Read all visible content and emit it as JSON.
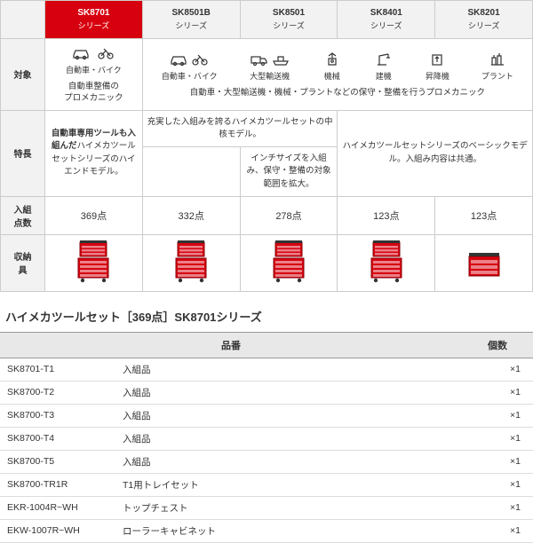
{
  "colors": {
    "accent": "#d7000f",
    "header_bg": "#f2f2f2",
    "border": "#ccc",
    "cabinet_red": "#d7000f",
    "cabinet_dark": "#8a0008"
  },
  "series": [
    {
      "name": "SK8701",
      "sub": "シリーズ",
      "active": true
    },
    {
      "name": "SK8501B",
      "sub": "シリーズ",
      "active": false
    },
    {
      "name": "SK8501",
      "sub": "シリーズ",
      "active": false
    },
    {
      "name": "SK8401",
      "sub": "シリーズ",
      "active": false
    },
    {
      "name": "SK8201",
      "sub": "シリーズ",
      "active": false
    }
  ],
  "row_labels": {
    "target": "対象",
    "feature": "特長",
    "count": "入組\n点数",
    "storage": "収納\n具"
  },
  "target": {
    "col1": {
      "icons": [
        "car",
        "bike"
      ],
      "label": "自動車・バイク",
      "desc": "自動車整備の\nプロメカニック"
    },
    "wide": {
      "groups": [
        {
          "icons": [
            "car",
            "bike"
          ],
          "label": "自動車・バイク"
        },
        {
          "icons": [
            "truck",
            "ship"
          ],
          "label": "大型輸送機"
        },
        {
          "icons": [
            "robot"
          ],
          "label": "機械"
        },
        {
          "icons": [
            "crane"
          ],
          "label": "建機"
        },
        {
          "icons": [
            "lift"
          ],
          "label": "昇降機"
        },
        {
          "icons": [
            "plant"
          ],
          "label": "プラント"
        }
      ],
      "desc": "自動車・大型輸送機・機械・プラントなどの保守・整備を行うプロメカニック"
    }
  },
  "feature": {
    "col1": "自動車専用ツールも入組んだハイメカツールセットシリーズのハイエンドモデル。",
    "col1_bold_prefix": "自動車専用ツールも入組んだ",
    "col2_top": "充実した入組みを誇るハイメカツールセットの中核モデル。",
    "col3_bottom": "インチサイズを入組み、保守・整備の対象範囲を拡大。",
    "col45": "ハイメカツールセットシリーズのベーシックモデル。入組み内容は共通。"
  },
  "count": [
    "369点",
    "332点",
    "278点",
    "123点",
    "123点"
  ],
  "storage_variant": [
    "tall",
    "tall",
    "tall",
    "tall",
    "short"
  ],
  "section_title": "ハイメカツールセット［369点］SK8701シリーズ",
  "parts_header": {
    "pn": "品番",
    "qty": "個数"
  },
  "parts": [
    {
      "pn": "SK8701-T1",
      "desc": "入組品",
      "qty": "×1"
    },
    {
      "pn": "SK8700-T2",
      "desc": "入組品",
      "qty": "×1"
    },
    {
      "pn": "SK8700-T3",
      "desc": "入組品",
      "qty": "×1"
    },
    {
      "pn": "SK8700-T4",
      "desc": "入組品",
      "qty": "×1"
    },
    {
      "pn": "SK8700-T5",
      "desc": "入組品",
      "qty": "×1"
    },
    {
      "pn": "SK8700-TR1R",
      "desc": "T1用トレイセット",
      "qty": "×1"
    },
    {
      "pn": "EKR-1004R~WH",
      "desc": "トップチェスト",
      "qty": "×1"
    },
    {
      "pn": "EKW-1007R~WH",
      "desc": "ローラーキャビネット",
      "qty": "×1"
    }
  ]
}
